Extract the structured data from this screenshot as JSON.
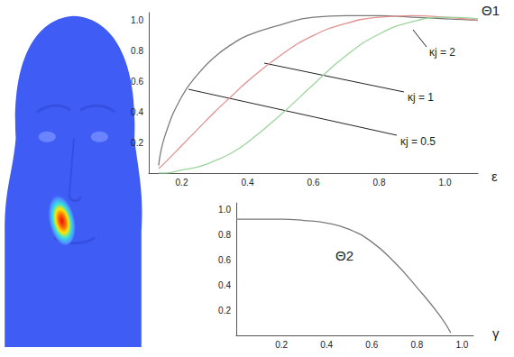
{
  "chart_data": [
    {
      "type": "line",
      "xlabel": "ε",
      "ylabel": "Θ1",
      "x": [
        0.13,
        0.15,
        0.2,
        0.25,
        0.3,
        0.35,
        0.4,
        0.5,
        0.6,
        0.7,
        0.8,
        0.9,
        1.0,
        1.1
      ],
      "xlim": [
        0.1,
        1.1
      ],
      "xticks": [
        0.2,
        0.4,
        0.6,
        0.8,
        {
          "value": 1,
          "label": "1.0"
        }
      ],
      "ylim": [
        0,
        1.05
      ],
      "yticks": [
        0.2,
        0.4,
        0.6,
        0.8,
        {
          "value": 1,
          "label": "1.0"
        }
      ],
      "grid": false,
      "series": [
        {
          "name": "κj = 0.5",
          "color": "#7a7a7a",
          "values": [
            0.05,
            0.25,
            0.5,
            0.65,
            0.76,
            0.84,
            0.9,
            0.97,
            1.02,
            1.03,
            1.03,
            1.02,
            1.01,
            1.0
          ]
        },
        {
          "name": "κj = 1",
          "color": "#e39090",
          "values": [
            0.03,
            0.07,
            0.18,
            0.29,
            0.4,
            0.5,
            0.6,
            0.77,
            0.9,
            0.98,
            1.02,
            1.03,
            1.02,
            1.0
          ]
        },
        {
          "name": "κj = 2",
          "color": "#9dd49d",
          "values": [
            0.0,
            0.0,
            0.02,
            0.04,
            0.08,
            0.13,
            0.2,
            0.38,
            0.58,
            0.77,
            0.91,
            0.99,
            1.02,
            1.01
          ]
        }
      ]
    },
    {
      "type": "line",
      "xlabel": "γ",
      "ylabel": "Θ2",
      "x": [
        0,
        0.1,
        0.2,
        0.3,
        0.4,
        0.5,
        0.6,
        0.7,
        0.8,
        0.9,
        0.95
      ],
      "values": [
        0.92,
        0.92,
        0.92,
        0.91,
        0.89,
        0.84,
        0.74,
        0.58,
        0.38,
        0.16,
        0.02
      ],
      "color": "#7a7a7a",
      "xlim": [
        0,
        1.05
      ],
      "xticks": [
        0.2,
        0.4,
        0.6,
        0.8,
        {
          "value": 1,
          "label": "1.0"
        }
      ],
      "ylim": [
        0,
        1.05
      ],
      "yticks": [
        0.2,
        0.4,
        0.6,
        0.8,
        {
          "value": 1,
          "label": "1.0"
        }
      ],
      "grid": false
    }
  ]
}
